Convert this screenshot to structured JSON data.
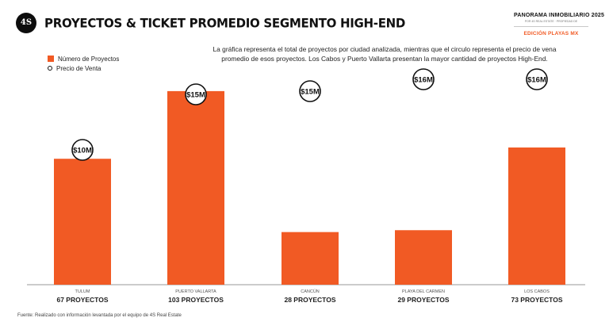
{
  "header": {
    "logo_text": "4S",
    "title": "PROYECTOS & TICKET PROMEDIO SEGMENTO HIGH-END",
    "brand_name": "PANORAMA INMOBILIARIO 2025",
    "brand_tagline": "POR 4S REAL ESTATE · PROPIEDAD DE",
    "edition": "EDICIÓN PLAYAS MX"
  },
  "description": "La gráfica representa el total de proyectos por ciudad analizada, mientras que el circulo representa el precio de vena promedio de esos proyectos. Los Cabos y Puerto Vallarta presentan la mayor cantidad de proyectos High-End.",
  "legend": {
    "bar_label": "Número de Proyectos",
    "circle_label": "Precio de Venta"
  },
  "source": "Fuente: Realizado con información levantada por el equipo de 4S Real Estate",
  "colors": {
    "bar": "#f15a24",
    "circle_border": "#111111"
  },
  "chart_data": {
    "type": "bar",
    "title": "PROYECTOS & TICKET PROMEDIO SEGMENTO HIGH-END",
    "categories": [
      "TULUM",
      "PUERTO VALLARTA",
      "CANCÚN",
      "PLAYA DEL CARMEN",
      "LOS CABOS"
    ],
    "category_values": [
      "67 PROYECTOS",
      "103 PROYECTOS",
      "28 PROYECTOS",
      "29 PROYECTOS",
      "73 PROYECTOS"
    ],
    "series": [
      {
        "name": "Número de Proyectos",
        "values": [
          67,
          103,
          28,
          29,
          73
        ]
      },
      {
        "name": "Precio de Venta",
        "values": [
          10,
          15,
          15,
          16,
          16
        ],
        "labels": [
          "$10M",
          "$15M",
          "$15M",
          "$16M",
          "$16M"
        ],
        "unit": "MXN millions"
      }
    ],
    "xlabel": "",
    "ylabel": "",
    "ylim": [
      0,
      110
    ],
    "grid": false,
    "legend_position": "top-left"
  }
}
